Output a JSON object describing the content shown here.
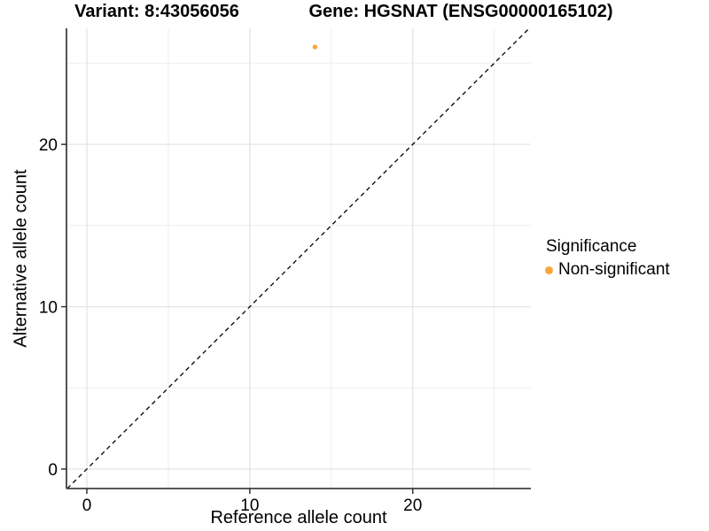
{
  "chart_data": {
    "type": "scatter",
    "title_variant": "Variant: 8:43056056",
    "title_gene": "Gene: HGSNAT (ENSG00000165102)",
    "xlabel": "Reference allele count",
    "ylabel": "Alternative allele count",
    "xlim": [
      -1.25,
      27.25
    ],
    "ylim": [
      -1.2,
      27.15
    ],
    "x_ticks": [
      0,
      10,
      20
    ],
    "y_ticks": [
      0,
      10,
      20
    ],
    "x_minor_gridlines": [
      5,
      15,
      25
    ],
    "y_minor_gridlines": [
      5,
      15,
      25
    ],
    "grid": "on",
    "series": [
      {
        "name": "Non-significant",
        "color": "#FAA53C",
        "points": [
          {
            "x": 14,
            "y": 26
          }
        ]
      }
    ],
    "identity_line": {
      "equation": "y = x",
      "linetype": "dashed",
      "color": "#000000"
    },
    "legend": {
      "position": "right",
      "title": "Significance",
      "items": [
        {
          "label": "Non-significant",
          "color": "#FAA53C"
        }
      ]
    },
    "theme": {
      "background": "#FFFFFF",
      "grid_major_color": "#E4E4E4",
      "grid_minor_color": "#EFEFEF",
      "axis_line_color": "#404040",
      "tick_color": "#333333",
      "text_color": "#000000"
    }
  }
}
